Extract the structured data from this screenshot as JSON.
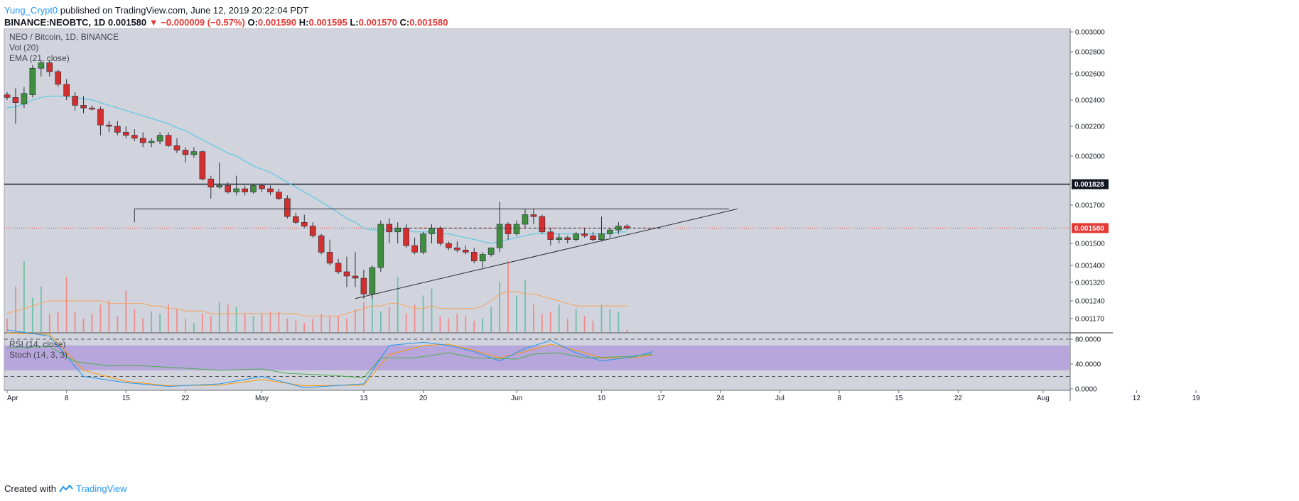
{
  "header": {
    "author": "Yung_Crypt0",
    "published": "published on TradingView.com, June 12, 2019 20:22:04 PDT",
    "symbol": "BINANCE:NEOBTC, 1D",
    "last": "0.001580",
    "change_arrow": "▼",
    "change": "−0.000009 (−0.57%)",
    "o_label": "O:",
    "o": "0.001590",
    "h_label": "H:",
    "h": "0.001595",
    "l_label": "L:",
    "l": "0.001570",
    "c_label": "C:",
    "c": "0.001580"
  },
  "legend": {
    "main": "NEO / Bitcoin, 1D, BINANCE",
    "vol": "Vol (20)",
    "ema": "EMA (21, close)",
    "rsi": "RSI (14, close)",
    "stoch": "Stoch (14, 3, 3)"
  },
  "footer": {
    "created_with": "Created with",
    "brand": "TradingView"
  },
  "colors": {
    "up": "#4caf50",
    "down": "#f44336",
    "ema": "#5ec8e5",
    "vol_ma": "#f7a35c",
    "rsi": "#4caf50",
    "stoch_k": "#2196f3",
    "stoch_d": "#ff9800",
    "band": "#b39ddb",
    "plot_bg": "#d1d4dc",
    "price_tag": "#e53935",
    "level_tag": "#131722"
  },
  "chart_data": {
    "type": "candlestick",
    "x_tick_labels": [
      "Apr",
      "8",
      "15",
      "22",
      "May",
      "13",
      "20",
      "Jun",
      "10",
      "17",
      "24",
      "Jul",
      "8",
      "15",
      "22",
      "Aug",
      "12",
      "19"
    ],
    "y_tick_labels": [
      "0.003000",
      "0.002800",
      "0.002600",
      "0.002400",
      "0.002200",
      "0.002000",
      "0.001700",
      "0.001500",
      "0.001400",
      "0.001320",
      "0.001240",
      "0.001170"
    ],
    "price_ticks": [
      0.003,
      0.0028,
      0.0026,
      0.0024,
      0.0022,
      0.002,
      0.0017,
      0.0015,
      0.0014,
      0.00132,
      0.00124,
      0.00117
    ],
    "ylim_display": [
      0.00113,
      0.00302
    ],
    "horizontal_level": 0.001828,
    "horizontal_level_label": "0.001828",
    "current_price": 0.00158,
    "current_price_label": "0.001580",
    "candles": [
      [
        0.00244,
        0.00246,
        0.0024,
        0.00242
      ],
      [
        0.00242,
        0.00249,
        0.00222,
        0.00238
      ],
      [
        0.00237,
        0.0025,
        0.00234,
        0.00245
      ],
      [
        0.00244,
        0.00268,
        0.00242,
        0.00265
      ],
      [
        0.00265,
        0.00272,
        0.00258,
        0.0027
      ],
      [
        0.0027,
        0.00272,
        0.00258,
        0.00262
      ],
      [
        0.00262,
        0.00264,
        0.0025,
        0.00252
      ],
      [
        0.00252,
        0.00256,
        0.0024,
        0.00243
      ],
      [
        0.00243,
        0.00246,
        0.00232,
        0.00236
      ],
      [
        0.00236,
        0.00243,
        0.0023,
        0.00234
      ],
      [
        0.00234,
        0.00236,
        0.00232,
        0.00233
      ],
      [
        0.00233,
        0.00235,
        0.00214,
        0.00221
      ],
      [
        0.00221,
        0.00224,
        0.00216,
        0.0022
      ],
      [
        0.0022,
        0.00224,
        0.00214,
        0.00216
      ],
      [
        0.00216,
        0.0022,
        0.00212,
        0.00214
      ],
      [
        0.00214,
        0.00218,
        0.0021,
        0.00212
      ],
      [
        0.00212,
        0.00216,
        0.00206,
        0.00209
      ],
      [
        0.00209,
        0.00212,
        0.00206,
        0.0021
      ],
      [
        0.0021,
        0.00216,
        0.00208,
        0.00214
      ],
      [
        0.00214,
        0.00216,
        0.00206,
        0.00207
      ],
      [
        0.00207,
        0.00212,
        0.00202,
        0.00204
      ],
      [
        0.00204,
        0.00206,
        0.00196,
        0.00201
      ],
      [
        0.00201,
        0.00206,
        0.00199,
        0.00203
      ],
      [
        0.00203,
        0.00204,
        0.00185,
        0.00186
      ],
      [
        0.00186,
        0.00188,
        0.00174,
        0.00181
      ],
      [
        0.00181,
        0.00196,
        0.0018,
        0.00182
      ],
      [
        0.00182,
        0.00184,
        0.00177,
        0.00178
      ],
      [
        0.00178,
        0.00188,
        0.00176,
        0.0018
      ],
      [
        0.0018,
        0.00182,
        0.00176,
        0.00178
      ],
      [
        0.00178,
        0.00183,
        0.00177,
        0.00182
      ],
      [
        0.00182,
        0.00183,
        0.00178,
        0.0018
      ],
      [
        0.0018,
        0.00182,
        0.00176,
        0.00178
      ],
      [
        0.00178,
        0.0018,
        0.00173,
        0.00174
      ],
      [
        0.00174,
        0.00176,
        0.00163,
        0.00164
      ],
      [
        0.00164,
        0.00166,
        0.0016,
        0.00161
      ],
      [
        0.00161,
        0.00165,
        0.00158,
        0.00159
      ],
      [
        0.00159,
        0.00161,
        0.00153,
        0.00154
      ],
      [
        0.00154,
        0.00155,
        0.00145,
        0.00146
      ],
      [
        0.00146,
        0.00152,
        0.0014,
        0.00141
      ],
      [
        0.00141,
        0.00143,
        0.00136,
        0.00137
      ],
      [
        0.00137,
        0.00144,
        0.0013,
        0.00135
      ],
      [
        0.00135,
        0.00146,
        0.0013,
        0.00134
      ],
      [
        0.00134,
        0.00138,
        0.00125,
        0.00127
      ],
      [
        0.00127,
        0.0014,
        0.00125,
        0.00139
      ],
      [
        0.00139,
        0.00162,
        0.00137,
        0.0016
      ],
      [
        0.0016,
        0.00163,
        0.0015,
        0.00156
      ],
      [
        0.00156,
        0.00161,
        0.0015,
        0.00158
      ],
      [
        0.00158,
        0.0016,
        0.00148,
        0.00149
      ],
      [
        0.00149,
        0.00153,
        0.00145,
        0.00146
      ],
      [
        0.00146,
        0.00156,
        0.00145,
        0.00155
      ],
      [
        0.00155,
        0.0016,
        0.0015,
        0.00158
      ],
      [
        0.00158,
        0.00159,
        0.00149,
        0.0015
      ],
      [
        0.0015,
        0.00151,
        0.00147,
        0.00148
      ],
      [
        0.00148,
        0.00151,
        0.00146,
        0.00147
      ],
      [
        0.00147,
        0.00149,
        0.00145,
        0.00146
      ],
      [
        0.00146,
        0.00148,
        0.00141,
        0.00142
      ],
      [
        0.00142,
        0.00146,
        0.00139,
        0.00145
      ],
      [
        0.00145,
        0.00148,
        0.00144,
        0.00148
      ],
      [
        0.00148,
        0.00172,
        0.00146,
        0.0016
      ],
      [
        0.0016,
        0.00161,
        0.00152,
        0.00155
      ],
      [
        0.00155,
        0.00162,
        0.00154,
        0.0016
      ],
      [
        0.0016,
        0.00168,
        0.00158,
        0.00165
      ],
      [
        0.00165,
        0.00168,
        0.0016,
        0.00164
      ],
      [
        0.00164,
        0.00165,
        0.00155,
        0.00156
      ],
      [
        0.00156,
        0.00158,
        0.00149,
        0.00152
      ],
      [
        0.00152,
        0.00155,
        0.0015,
        0.00153
      ],
      [
        0.00153,
        0.00154,
        0.0015,
        0.00152
      ],
      [
        0.00152,
        0.00156,
        0.00151,
        0.00155
      ],
      [
        0.00155,
        0.00158,
        0.00153,
        0.00154
      ],
      [
        0.00154,
        0.00156,
        0.00151,
        0.00152
      ],
      [
        0.00152,
        0.00164,
        0.00151,
        0.00155
      ],
      [
        0.00155,
        0.00158,
        0.00153,
        0.00157
      ],
      [
        0.00157,
        0.00161,
        0.00155,
        0.00159
      ],
      [
        0.00159,
        0.0016,
        0.00157,
        0.00158
      ]
    ],
    "volume": [
      6,
      20,
      31,
      15,
      20,
      8,
      9,
      24,
      9,
      6,
      8,
      12,
      14,
      7,
      18,
      10,
      6,
      9,
      8,
      12,
      10,
      6,
      4,
      8,
      7,
      13,
      12,
      11,
      8,
      7,
      8,
      9,
      9,
      6,
      5,
      4,
      6,
      8,
      7,
      7,
      6,
      10,
      13,
      15,
      9,
      11,
      24,
      8,
      12,
      16,
      19,
      7,
      6,
      8,
      7,
      5,
      6,
      11,
      22,
      31,
      16,
      23,
      12,
      8,
      9,
      12,
      6,
      10,
      7,
      5,
      12,
      10,
      9,
      1
    ],
    "vol_ma": [
      0.00119,
      0.0012,
      0.00121,
      0.00122,
      0.00123,
      0.00124,
      0.00124,
      0.00124,
      0.00124,
      0.00124,
      0.00124,
      0.00124,
      0.00123,
      0.00123,
      0.00123,
      0.00123,
      0.00123,
      0.00122,
      0.00122,
      0.00121,
      0.00121,
      0.0012,
      0.0012,
      0.0012,
      0.00119,
      0.00119,
      0.00119,
      0.00119,
      0.00119,
      0.00119,
      0.00119,
      0.00119,
      0.00119,
      0.00119,
      0.00119,
      0.00118,
      0.00118,
      0.00118,
      0.00118,
      0.00118,
      0.00119,
      0.0012,
      0.00121,
      0.00122,
      0.00122,
      0.00123,
      0.00123,
      0.00122,
      0.00121,
      0.00121,
      0.00122,
      0.00121,
      0.00121,
      0.00121,
      0.00121,
      0.00121,
      0.00122,
      0.00124,
      0.00127,
      0.00128,
      0.00128,
      0.00127,
      0.00127,
      0.00126,
      0.00125,
      0.00124,
      0.00123,
      0.00122,
      0.00122,
      0.00122,
      0.00122,
      0.00122,
      0.00122,
      0.00122
    ],
    "ema": [
      0.00234,
      0.00235,
      0.00237,
      0.0024,
      0.00242,
      0.00243,
      0.00243,
      0.00243,
      0.00242,
      0.00241,
      0.0024,
      0.00238,
      0.00236,
      0.00234,
      0.00232,
      0.0023,
      0.00228,
      0.00226,
      0.00224,
      0.00222,
      0.00219,
      0.00217,
      0.00214,
      0.00211,
      0.00208,
      0.00205,
      0.00202,
      0.002,
      0.00197,
      0.00194,
      0.00192,
      0.0019,
      0.00187,
      0.00184,
      0.00181,
      0.00178,
      0.00175,
      0.00172,
      0.00169,
      0.00166,
      0.00163,
      0.00161,
      0.00158,
      0.00157,
      0.00157,
      0.00157,
      0.00157,
      0.00157,
      0.00156,
      0.00156,
      0.00156,
      0.00155,
      0.00155,
      0.00154,
      0.00153,
      0.00152,
      0.00151,
      0.0015,
      0.00151,
      0.00152,
      0.00153,
      0.00154,
      0.00155,
      0.00155,
      0.00155,
      0.00155,
      0.00155,
      0.00155,
      0.00155,
      0.00155,
      0.00155,
      0.00155,
      0.00156,
      0.00156
    ],
    "trendlines": [
      {
        "from": [
          15,
          0.00168
        ],
        "to": [
          85,
          0.00168
        ],
        "from_stub": [
          15,
          0.00161
        ]
      },
      {
        "from": [
          41,
          0.00125
        ],
        "to": [
          86,
          0.00168
        ]
      },
      {
        "from": [
          45,
          0.00158
        ],
        "to": [
          77,
          0.00158
        ],
        "dashed": true
      }
    ],
    "rsi": [
      {
        "x": 0,
        "y": 66
      },
      {
        "x": 5,
        "y": 68
      },
      {
        "x": 8,
        "y": 44
      },
      {
        "x": 12,
        "y": 37
      },
      {
        "x": 15,
        "y": 38
      },
      {
        "x": 20,
        "y": 34
      },
      {
        "x": 25,
        "y": 30
      },
      {
        "x": 30,
        "y": 32
      },
      {
        "x": 33,
        "y": 25
      },
      {
        "x": 38,
        "y": 22
      },
      {
        "x": 42,
        "y": 18
      },
      {
        "x": 44,
        "y": 50
      },
      {
        "x": 48,
        "y": 50
      },
      {
        "x": 52,
        "y": 58
      },
      {
        "x": 55,
        "y": 50
      },
      {
        "x": 60,
        "y": 48
      },
      {
        "x": 62,
        "y": 56
      },
      {
        "x": 65,
        "y": 58
      },
      {
        "x": 68,
        "y": 50
      },
      {
        "x": 73,
        "y": 52
      },
      {
        "x": 76,
        "y": 56
      }
    ],
    "stoch_k": [
      {
        "x": 0,
        "y": 95
      },
      {
        "x": 5,
        "y": 85
      },
      {
        "x": 9,
        "y": 20
      },
      {
        "x": 14,
        "y": 10
      },
      {
        "x": 19,
        "y": 4
      },
      {
        "x": 25,
        "y": 8
      },
      {
        "x": 30,
        "y": 20
      },
      {
        "x": 35,
        "y": 2
      },
      {
        "x": 42,
        "y": 8
      },
      {
        "x": 45,
        "y": 70
      },
      {
        "x": 49,
        "y": 75
      },
      {
        "x": 52,
        "y": 70
      },
      {
        "x": 55,
        "y": 60
      },
      {
        "x": 58,
        "y": 45
      },
      {
        "x": 61,
        "y": 65
      },
      {
        "x": 64,
        "y": 78
      },
      {
        "x": 67,
        "y": 58
      },
      {
        "x": 70,
        "y": 45
      },
      {
        "x": 74,
        "y": 52
      },
      {
        "x": 76,
        "y": 60
      }
    ],
    "stoch_d": [
      {
        "x": 0,
        "y": 90
      },
      {
        "x": 5,
        "y": 88
      },
      {
        "x": 9,
        "y": 30
      },
      {
        "x": 14,
        "y": 12
      },
      {
        "x": 19,
        "y": 5
      },
      {
        "x": 25,
        "y": 6
      },
      {
        "x": 30,
        "y": 15
      },
      {
        "x": 35,
        "y": 5
      },
      {
        "x": 42,
        "y": 6
      },
      {
        "x": 45,
        "y": 55
      },
      {
        "x": 49,
        "y": 70
      },
      {
        "x": 52,
        "y": 72
      },
      {
        "x": 55,
        "y": 62
      },
      {
        "x": 58,
        "y": 50
      },
      {
        "x": 61,
        "y": 60
      },
      {
        "x": 64,
        "y": 72
      },
      {
        "x": 67,
        "y": 62
      },
      {
        "x": 70,
        "y": 50
      },
      {
        "x": 74,
        "y": 50
      },
      {
        "x": 76,
        "y": 55
      }
    ],
    "osc_ticks": [
      80,
      40,
      0
    ],
    "osc_tick_labels": [
      "80.0000",
      "40.0000",
      "0.0000"
    ],
    "osc_band": [
      70,
      30
    ]
  }
}
